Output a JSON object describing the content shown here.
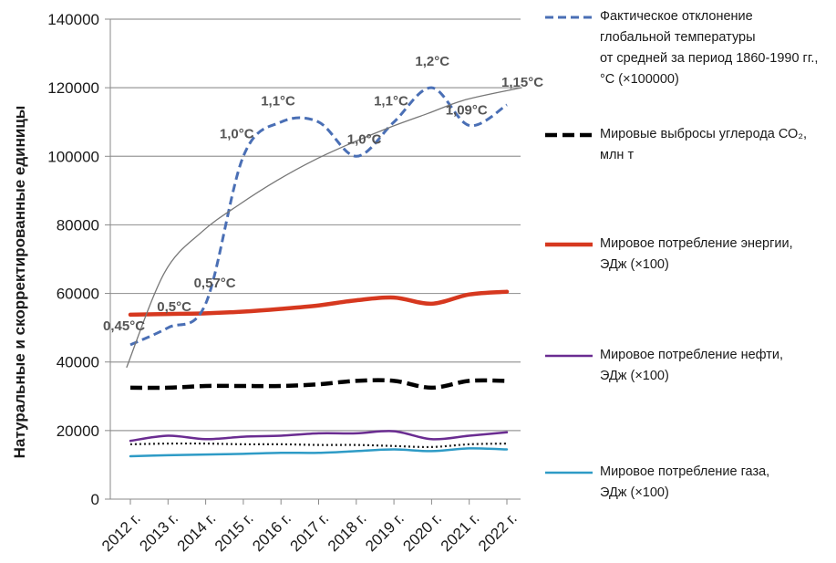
{
  "chart_data": {
    "type": "line",
    "ylabel": "Натуральные и скорректированные единицы",
    "ylim": [
      0,
      140000
    ],
    "yticks": [
      0,
      20000,
      40000,
      60000,
      80000,
      100000,
      120000,
      140000
    ],
    "categories": [
      "2012 г.",
      "2013 г.",
      "2014 г.",
      "2015 г.",
      "2016 г.",
      "2017 г.",
      "2018 г.",
      "2019 г.",
      "2020 г.",
      "2021 г.",
      "2022 г."
    ],
    "grid": "horizontal",
    "legend_position": "right",
    "series": [
      {
        "id": "temp",
        "name": "Фактическое отклонение\nглобальной температуры\nот средней за период 1860-1990 гг.,\n°С (×100000)",
        "color": "#4a6fb5",
        "style": "dashed",
        "values": [
          45000,
          50000,
          57000,
          100000,
          110000,
          110000,
          100000,
          110000,
          120000,
          109000,
          115000
        ],
        "labels": [
          "0,45°C",
          "0,5°C",
          "0,57°C",
          "1,0°C",
          "1,1°C",
          "",
          "1,0°C",
          "1,1°C",
          "1,2°C",
          "1,09°C",
          "1,15°C"
        ]
      },
      {
        "id": "co2",
        "name": "Мировые выбросы углерода СО₂,\nмлн т",
        "color": "#000000",
        "style": "bold-dashed",
        "values": [
          32500,
          32500,
          33000,
          33000,
          33000,
          33500,
          34500,
          34500,
          32500,
          34500,
          34500
        ]
      },
      {
        "id": "energy",
        "name": "Мировое потребление энергии,\nЭДж (×100)",
        "color": "#d6381f",
        "style": "solid-thick",
        "values": [
          53800,
          54000,
          54200,
          54700,
          55500,
          56500,
          58000,
          58800,
          57000,
          59700,
          60500
        ]
      },
      {
        "id": "oil",
        "name": "Мировое потребление нефти,\nЭДж (×100)",
        "color": "#6a2c91",
        "style": "solid",
        "values": [
          17000,
          18500,
          17500,
          18200,
          18500,
          19200,
          19200,
          19800,
          17500,
          18500,
          19500
        ]
      },
      {
        "id": "coal",
        "name": "",
        "color": "#222222",
        "style": "dotted",
        "values": [
          16000,
          16200,
          16200,
          16000,
          16000,
          15800,
          15800,
          15500,
          15200,
          16000,
          16200
        ]
      },
      {
        "id": "gas",
        "name": "Мировое потребление газа,\nЭДж (×100)",
        "color": "#2e9bc6",
        "style": "solid",
        "values": [
          12500,
          12800,
          13000,
          13200,
          13500,
          13500,
          14000,
          14500,
          14000,
          14800,
          14500
        ]
      },
      {
        "id": "trend",
        "name": "",
        "color": "#777777",
        "style": "thin-curve",
        "values": [
          38500,
          66000,
          78000,
          86000,
          93000,
          99000,
          104000,
          108500,
          112500,
          116500,
          120000
        ]
      }
    ]
  },
  "legend": [
    {
      "series": "temp",
      "swatch_color": "#4a6fb5",
      "swatch_style": "dashed"
    },
    {
      "series": "co2",
      "swatch_color": "#000000",
      "swatch_style": "bold-dashed"
    },
    {
      "series": "energy",
      "swatch_color": "#d6381f",
      "swatch_style": "solid-thick"
    },
    {
      "series": "oil",
      "swatch_color": "#6a2c91",
      "swatch_style": "solid"
    },
    {
      "series": "gas",
      "swatch_color": "#2e9bc6",
      "swatch_style": "solid"
    }
  ]
}
